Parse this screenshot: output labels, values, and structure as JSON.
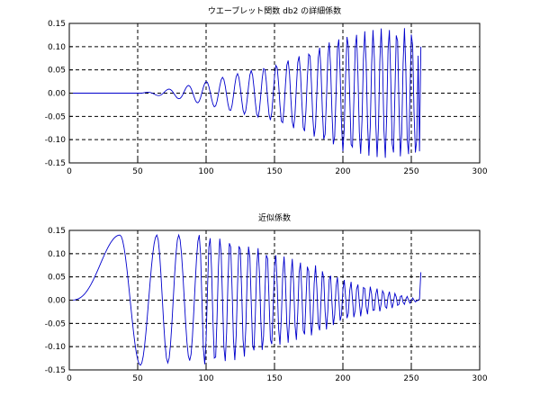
{
  "chart_data": [
    {
      "type": "line",
      "title": "ウエーブレット関数 db2 の詳細係数",
      "xlabel": "",
      "ylabel": "",
      "xlim": [
        0,
        300
      ],
      "ylim": [
        -0.15,
        0.15
      ],
      "xticks": [
        "0",
        "50",
        "100",
        "150",
        "200",
        "250",
        "300"
      ],
      "yticks": [
        "0.15",
        "0.10",
        "0.05",
        "0.00",
        "-0.05",
        "-0.10",
        "-0.15"
      ],
      "grid": true,
      "line_color": "#0000cc",
      "signal": {
        "n": 258,
        "onset": 52,
        "envelope": [
          [
            0,
            0
          ],
          [
            52,
            0
          ],
          [
            60,
            0.003
          ],
          [
            80,
            0.012
          ],
          [
            100,
            0.025
          ],
          [
            120,
            0.04
          ],
          [
            150,
            0.06
          ],
          [
            180,
            0.095
          ],
          [
            200,
            0.125
          ],
          [
            230,
            0.14
          ],
          [
            250,
            0.14
          ],
          [
            255,
            0.12
          ]
        ],
        "phase_freq": [
          [
            52,
            0.35
          ],
          [
            100,
            0.5
          ],
          [
            150,
            0.72
          ],
          [
            200,
            0.95
          ],
          [
            257,
            1.2
          ]
        ],
        "tail": [
          [
            254,
            -0.1
          ],
          [
            256,
            -0.125
          ],
          [
            257,
            0.1
          ]
        ]
      }
    },
    {
      "type": "line",
      "title": "近似係数",
      "xlabel": "",
      "ylabel": "",
      "xlim": [
        0,
        300
      ],
      "ylim": [
        -0.15,
        0.15
      ],
      "xticks": [
        "0",
        "50",
        "100",
        "150",
        "200",
        "250",
        "300"
      ],
      "yticks": [
        "0.15",
        "0.10",
        "0.05",
        "0.00",
        "-0.05",
        "-0.10",
        "-0.15"
      ],
      "grid": true,
      "line_color": "#0000cc",
      "signal": {
        "n": 258,
        "peaks": [
          [
            37,
            0.14
          ],
          [
            52,
            -0.14
          ],
          [
            64,
            0.14
          ],
          [
            72,
            -0.135
          ],
          [
            80,
            0.14
          ],
          [
            88,
            -0.13
          ],
          [
            95,
            0.14
          ]
        ],
        "envelope": [
          [
            95,
            0.14
          ],
          [
            120,
            0.13
          ],
          [
            150,
            0.1
          ],
          [
            180,
            0.075
          ],
          [
            200,
            0.045
          ],
          [
            230,
            0.022
          ],
          [
            252,
            0.004
          ]
        ],
        "phase_freq": [
          [
            95,
            0.8
          ],
          [
            150,
            1.0
          ],
          [
            200,
            1.25
          ],
          [
            252,
            1.5
          ]
        ],
        "tail": [
          [
            252,
            0.0
          ],
          [
            255,
            0.0
          ],
          [
            257,
            0.06
          ]
        ]
      }
    }
  ]
}
